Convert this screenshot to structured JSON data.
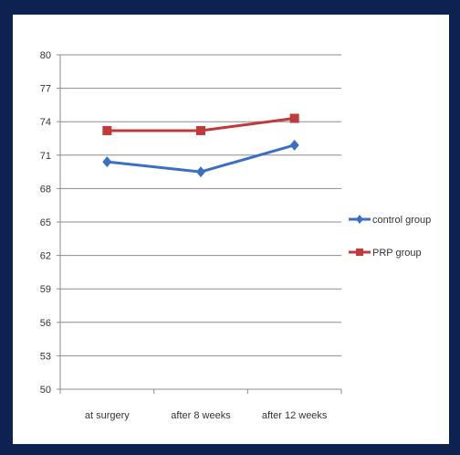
{
  "chart_data": {
    "type": "line",
    "title": "",
    "xlabel": "",
    "ylabel": "",
    "categories": [
      "at surgery",
      "after 8 weeks",
      "after 12 weeks"
    ],
    "yticks": [
      "50",
      "53",
      "56",
      "59",
      "62",
      "65",
      "68",
      "71",
      "74",
      "77",
      "80"
    ],
    "ylim": [
      50,
      80
    ],
    "grid": true,
    "legend_position": "right",
    "series": [
      {
        "name": "control group",
        "values": [
          70.4,
          69.5,
          71.9
        ],
        "color": "#3b6fc4",
        "marker": "diamond"
      },
      {
        "name": "PRP group",
        "values": [
          73.2,
          73.2,
          74.3
        ],
        "color": "#c0393b",
        "marker": "square"
      }
    ]
  }
}
